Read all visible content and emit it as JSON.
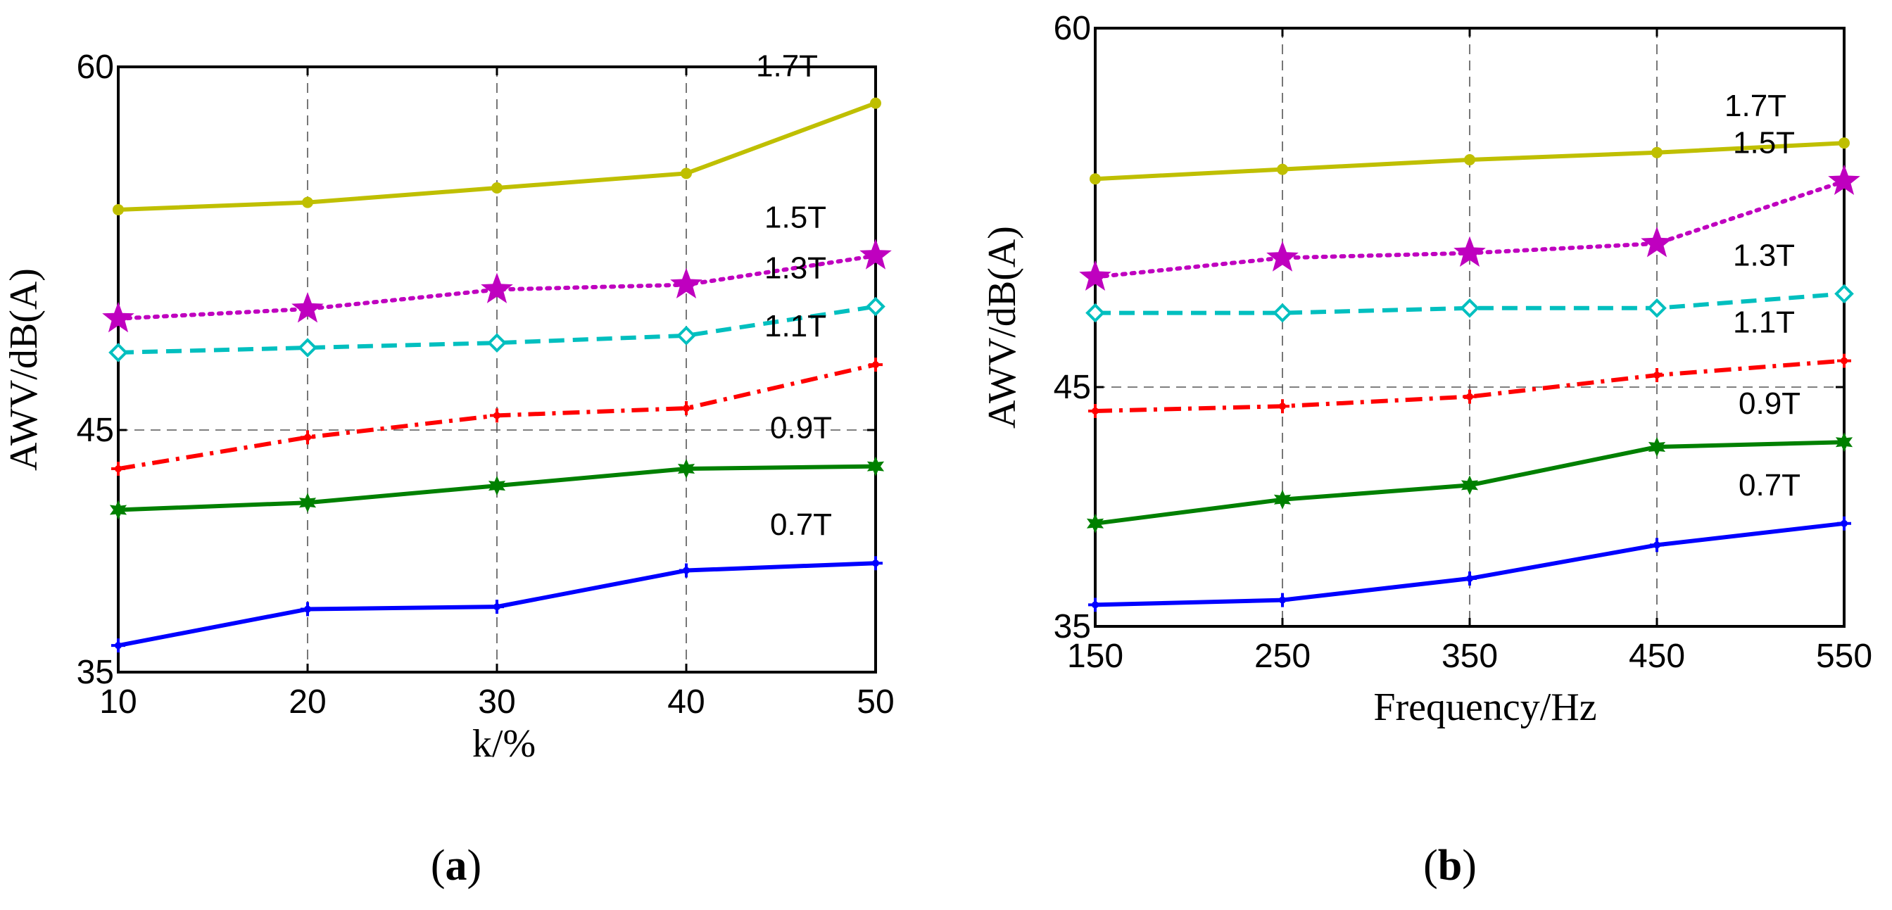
{
  "chart_data": [
    {
      "type": "line",
      "panel_label": "(a)",
      "panel_letter": "a",
      "xlabel": "k/%",
      "ylabel": "AWV/dB(A)",
      "x": [
        10,
        20,
        30,
        40,
        50
      ],
      "xlim": [
        10,
        50
      ],
      "ylim": [
        35,
        60
      ],
      "xticks": [
        "10",
        "20",
        "30",
        "40",
        "50"
      ],
      "yticks": [
        {
          "value": 35,
          "label": "35"
        },
        {
          "value": 45,
          "label": "45"
        },
        {
          "value": 60,
          "label": "60"
        }
      ],
      "grid": "dashed vertical lines at x ticks, dashed horizontal line at 45",
      "series": [
        {
          "name": "1.7T",
          "color": "#bfbf00",
          "style": "solid",
          "marker": "dot",
          "values": [
            54.1,
            54.4,
            55.0,
            55.6,
            58.5
          ]
        },
        {
          "name": "1.5T",
          "color": "#bf00bf",
          "style": "dotted",
          "marker": "star",
          "values": [
            49.6,
            50.0,
            50.8,
            51.0,
            52.2
          ]
        },
        {
          "name": "1.3T",
          "color": "#00bfbf",
          "style": "dashed",
          "marker": "diamond",
          "values": [
            48.2,
            48.4,
            48.6,
            48.9,
            50.1
          ]
        },
        {
          "name": "1.1T",
          "color": "#ff0000",
          "style": "dashdot",
          "marker": "plus",
          "values": [
            43.4,
            44.7,
            45.6,
            45.9,
            47.7
          ]
        },
        {
          "name": "0.9T",
          "color": "#008000",
          "style": "solid",
          "marker": "star6",
          "values": [
            41.7,
            42.0,
            42.7,
            43.4,
            43.5
          ]
        },
        {
          "name": "0.7T",
          "color": "#0000ff",
          "style": "solid",
          "marker": "plus",
          "values": [
            36.1,
            37.6,
            37.7,
            39.2,
            39.5
          ]
        }
      ]
    },
    {
      "type": "line",
      "panel_label": "(b)",
      "panel_letter": "b",
      "xlabel": "Frequency/Hz",
      "ylabel": "AWV/dB(A)",
      "x": [
        150,
        250,
        350,
        450,
        550
      ],
      "xlim": [
        150,
        550
      ],
      "ylim": [
        35,
        60
      ],
      "xticks": [
        "150",
        "250",
        "350",
        "450",
        "550"
      ],
      "yticks": [
        {
          "value": 35,
          "label": "35"
        },
        {
          "value": 45,
          "label": "45"
        },
        {
          "value": 60,
          "label": "60"
        }
      ],
      "grid": "dashed vertical lines at x ticks, dashed horizontal line at 45",
      "series": [
        {
          "name": "1.7T",
          "color": "#bfbf00",
          "style": "solid",
          "marker": "dot",
          "values": [
            53.7,
            54.1,
            54.5,
            54.8,
            55.2
          ]
        },
        {
          "name": "1.5T",
          "color": "#bf00bf",
          "style": "dotted",
          "marker": "star",
          "values": [
            49.6,
            50.4,
            50.6,
            51.0,
            53.6
          ]
        },
        {
          "name": "1.3T",
          "color": "#00bfbf",
          "style": "dashed",
          "marker": "diamond",
          "values": [
            48.1,
            48.1,
            48.3,
            48.3,
            48.9
          ]
        },
        {
          "name": "1.1T",
          "color": "#ff0000",
          "style": "dashdot",
          "marker": "plus",
          "values": [
            44.0,
            44.2,
            44.6,
            45.5,
            46.1
          ]
        },
        {
          "name": "0.9T",
          "color": "#008000",
          "style": "solid",
          "marker": "star6",
          "values": [
            39.3,
            40.3,
            40.9,
            42.5,
            42.7
          ]
        },
        {
          "name": "0.7T",
          "color": "#0000ff",
          "style": "solid",
          "marker": "plus",
          "values": [
            35.9,
            36.1,
            37.0,
            38.4,
            39.3
          ]
        }
      ]
    }
  ]
}
